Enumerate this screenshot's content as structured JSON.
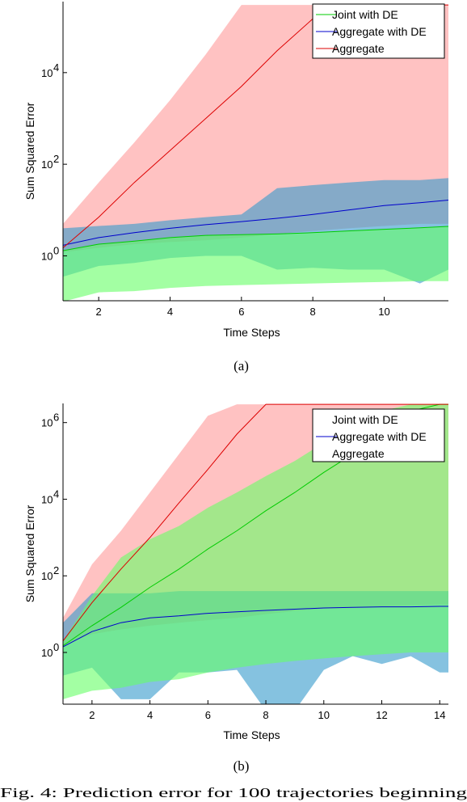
{
  "chart_data": [
    {
      "type": "line",
      "panel_label": "(a)",
      "xlabel": "Time Steps",
      "ylabel": "Sum Squared Error",
      "xlim": [
        1,
        11.8
      ],
      "ylim_log10": [
        -0.98,
        5.55
      ],
      "y_scale": "log",
      "xticks": [
        2,
        4,
        6,
        8,
        10
      ],
      "yticks": [
        {
          "value": 1,
          "label": "10",
          "exp": "0"
        },
        {
          "value": 100,
          "label": "10",
          "exp": "2"
        },
        {
          "value": 10000,
          "label": "10",
          "exp": "4"
        }
      ],
      "legend_position": "top-right",
      "series": [
        {
          "name": "Joint with DE",
          "color": "#00cc00",
          "fill": "#66ff66",
          "x": [
            1,
            2,
            3,
            4,
            5,
            6,
            7,
            8,
            9,
            10,
            11,
            11.8
          ],
          "mean": [
            1.3,
            1.8,
            2.1,
            2.5,
            2.8,
            2.9,
            3.0,
            3.2,
            3.5,
            3.8,
            4.1,
            4.4
          ],
          "upper": [
            1.3,
            1.8,
            2.1,
            2.5,
            2.8,
            2.9,
            3.0,
            3.2,
            3.5,
            3.8,
            4.1,
            4.4
          ],
          "lower": [
            0.1,
            0.16,
            0.17,
            0.2,
            0.22,
            0.23,
            0.24,
            0.25,
            0.26,
            0.27,
            0.28,
            0.28
          ]
        },
        {
          "name": "Aggregate with DE",
          "color": "#0000cc",
          "fill": "#3399cc",
          "x": [
            1,
            2,
            3,
            4,
            5,
            6,
            7,
            8,
            9,
            10,
            11,
            11.8
          ],
          "mean": [
            1.7,
            2.5,
            3.2,
            4.0,
            4.8,
            5.6,
            6.6,
            8.0,
            10,
            12.5,
            14.5,
            16.5
          ],
          "upper": [
            4.0,
            4.5,
            5.0,
            6.0,
            7.0,
            8.0,
            30,
            35,
            40,
            45,
            45,
            50
          ],
          "lower": [
            0.35,
            0.6,
            0.7,
            0.9,
            1.0,
            1.0,
            0.5,
            0.55,
            0.5,
            0.5,
            0.25,
            0.5
          ]
        },
        {
          "name": "Aggregate",
          "color": "#dd0000",
          "fill": "#ff9999",
          "x": [
            1,
            2,
            3,
            4,
            5,
            6,
            7,
            8,
            9,
            10,
            11,
            11.8
          ],
          "mean": [
            1.5,
            7,
            40,
            200,
            1000,
            5000,
            30000,
            150000,
            300000,
            300000,
            300000,
            300000
          ],
          "upper": [
            5,
            40,
            300,
            2500,
            25000,
            300000,
            300000,
            300000,
            300000,
            300000,
            300000,
            300000
          ],
          "lower": [
            1.2,
            1.5,
            1.8,
            2.0,
            2.2,
            2.5,
            3.0,
            3.5,
            4.0,
            4.5,
            5.0,
            5.0
          ]
        }
      ]
    },
    {
      "type": "line",
      "panel_label": "(b)",
      "xlabel": "Time Steps",
      "ylabel": "Sum Squared Error",
      "xlim": [
        1,
        14.3
      ],
      "ylim_log10": [
        -1.35,
        6.5
      ],
      "y_scale": "log",
      "xticks": [
        2,
        4,
        6,
        8,
        10,
        12,
        14
      ],
      "yticks": [
        {
          "value": 1,
          "label": "10",
          "exp": "0"
        },
        {
          "value": 100,
          "label": "10",
          "exp": "2"
        },
        {
          "value": 10000,
          "label": "10",
          "exp": "4"
        },
        {
          "value": 1000000,
          "label": "10",
          "exp": "6"
        }
      ],
      "legend_position": "top-right",
      "series": [
        {
          "name": "Joint with DE",
          "color": "#00cc00",
          "fill": "#66ff66",
          "x": [
            1,
            2,
            3,
            4,
            5,
            6,
            7,
            8,
            9,
            10,
            11,
            12,
            13,
            14,
            14.3
          ],
          "mean": [
            1.5,
            5,
            15,
            50,
            150,
            500,
            1500,
            5000,
            15000,
            50000,
            150000,
            500000,
            2000000,
            3000000,
            3000000
          ],
          "upper": [
            2.0,
            30,
            300,
            900,
            2000,
            6000,
            15000,
            40000,
            100000,
            300000,
            900000,
            2000000,
            3000000,
            3000000,
            3000000
          ],
          "lower": [
            0.06,
            0.1,
            0.12,
            0.17,
            0.2,
            0.3,
            0.4,
            0.5,
            0.6,
            0.7,
            0.8,
            0.9,
            1.0,
            1.0,
            1.0
          ]
        },
        {
          "name": "Aggregate with DE",
          "color": "#0000cc",
          "fill": "#3399cc",
          "x": [
            1,
            2,
            3,
            4,
            5,
            6,
            7,
            8,
            9,
            10,
            11,
            12,
            13,
            14,
            14.3
          ],
          "mean": [
            1.4,
            3.5,
            6,
            8,
            9,
            10.5,
            11.5,
            12.5,
            13.5,
            14.5,
            15,
            15.5,
            15.5,
            16,
            16
          ],
          "upper": [
            6,
            35,
            35,
            35,
            40,
            40,
            40,
            40,
            40,
            40,
            40,
            40,
            40,
            40,
            40
          ],
          "lower": [
            0.25,
            0.4,
            0.06,
            0.06,
            0.3,
            0.3,
            0.35,
            0.03,
            0.03,
            0.35,
            0.8,
            0.5,
            0.8,
            0.3,
            0.3
          ]
        },
        {
          "name": "Aggregate",
          "color": "#dd0000",
          "fill": "#ff9999",
          "x": [
            1,
            2,
            3,
            4,
            5,
            6,
            7,
            8,
            9,
            10,
            11,
            12,
            13,
            14,
            14.3
          ],
          "mean": [
            2,
            20,
            150,
            1000,
            8000,
            60000,
            500000,
            3000000,
            3000000,
            3000000,
            3000000,
            3000000,
            3000000,
            3000000,
            3000000
          ],
          "upper": [
            8,
            200,
            1500,
            15000,
            150000,
            1500000,
            3000000,
            3000000,
            3000000,
            3000000,
            3000000,
            3000000,
            3000000,
            3000000,
            3000000
          ],
          "lower": [
            1.5,
            3,
            4,
            5,
            6,
            7,
            8,
            10,
            12,
            14,
            15,
            16,
            17,
            18,
            18
          ]
        }
      ]
    }
  ],
  "caption": "Fig. 4: Prediction error for 100 trajectories beginning"
}
